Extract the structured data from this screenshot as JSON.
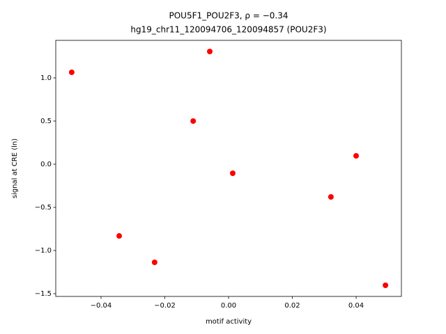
{
  "chart_data": {
    "type": "scatter",
    "title": "POU5F1_POU2F3, ρ = −0.34",
    "subtitle": "hg19_chr11_120094706_120094857 (POU2F3)",
    "x_label": "motif activity",
    "y_label": "signal at CRE (ln)",
    "color": "#ff0000",
    "x": [
      -0.0492,
      -0.0059,
      -0.0111,
      0.0013,
      0.04,
      0.0321,
      -0.0343,
      -0.0232,
      0.0492
    ],
    "values": [
      1.065,
      1.306,
      0.5,
      -0.105,
      0.097,
      -0.379,
      -0.831,
      -1.137,
      -1.403
    ],
    "xlim": [
      -0.0542,
      0.0542
    ],
    "ylim": [
      -1.532,
      1.435
    ],
    "xticks": [
      {
        "value": -0.04,
        "label": "−0.04"
      },
      {
        "value": -0.02,
        "label": "−0.02"
      },
      {
        "value": 0,
        "label": "0.00"
      },
      0.02,
      0.04
    ],
    "yticks": [
      {
        "value": -1.5,
        "label": "−1.5"
      },
      {
        "value": -1.0,
        "label": "−1.0"
      },
      {
        "value": -0.5,
        "label": "−0.5"
      },
      {
        "value": 0,
        "label": "0.0"
      },
      0.5,
      {
        "value": 1.0,
        "label": "1.0"
      }
    ],
    "grid": false
  }
}
